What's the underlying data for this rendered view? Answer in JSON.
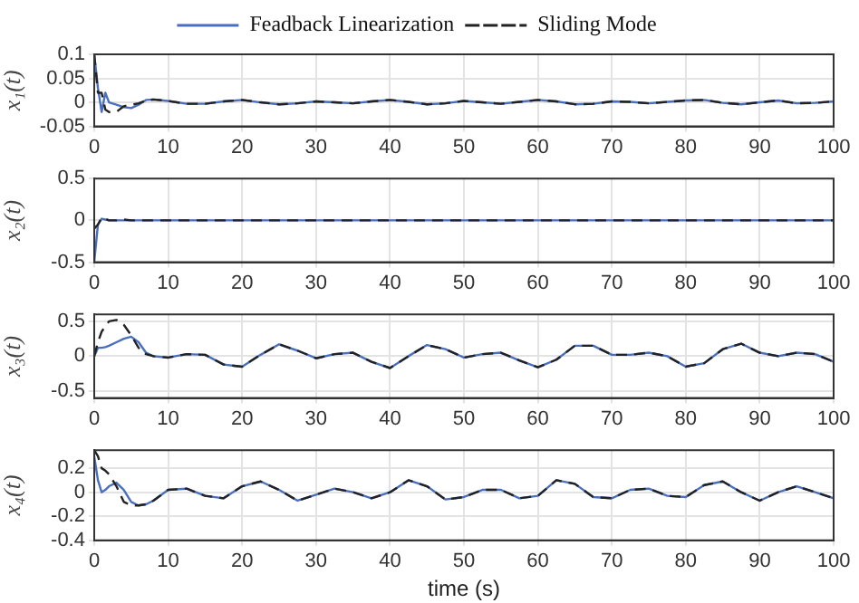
{
  "chart_data": [
    {
      "type": "line",
      "ylabel": "x₁(t)",
      "legend": "top",
      "grid": true,
      "xlim": [
        0,
        100
      ],
      "xticks": [
        0,
        10,
        20,
        30,
        40,
        50,
        60,
        70,
        80,
        90,
        100
      ],
      "ylim": [
        -0.05,
        0.1
      ],
      "yticks": [
        -0.05,
        0,
        0.05,
        0.1
      ],
      "x": [
        0,
        0.5,
        1,
        1.5,
        2,
        3,
        4,
        5,
        6,
        7,
        8,
        10,
        12.5,
        15,
        17.5,
        20,
        22.5,
        25,
        27.5,
        30,
        32.5,
        35,
        37.5,
        40,
        42.5,
        45,
        47.5,
        50,
        52.5,
        55,
        57.5,
        60,
        62.5,
        65,
        67.5,
        70,
        72.5,
        75,
        77.5,
        80,
        82.5,
        85,
        87.5,
        90,
        92.5,
        95,
        97.5,
        100
      ],
      "series": [
        {
          "name": "Feadback Linearization",
          "color": "#4a6fbf",
          "line_style": "solid",
          "values": [
            0.1,
            0.03,
            -0.02,
            0.02,
            0,
            -0.005,
            -0.01,
            -0.012,
            -0.005,
            0.005,
            0.006,
            0.003,
            -0.003,
            -0.003,
            0.002,
            0.005,
            0,
            -0.004,
            -0.002,
            0.002,
            0,
            -0.002,
            0.002,
            0.005,
            0.001,
            -0.004,
            -0.002,
            0.003,
            0,
            -0.003,
            0.001,
            0.005,
            0.002,
            -0.004,
            -0.003,
            0.002,
            0.001,
            -0.002,
            0.001,
            0.004,
            0.005,
            -0.001,
            -0.004,
            0,
            0.004,
            -0.002,
            -0.001,
            0.002
          ]
        },
        {
          "name": "Sliding Mode",
          "color": "#222222",
          "line_style": "dashed",
          "values": [
            0.1,
            0.02,
            0.02,
            -0.015,
            -0.02,
            -0.02,
            -0.008,
            -0.005,
            -0.002,
            0.004,
            0.006,
            0.003,
            -0.003,
            -0.003,
            0.002,
            0.005,
            0,
            -0.004,
            -0.002,
            0.002,
            0,
            -0.002,
            0.002,
            0.005,
            0.001,
            -0.004,
            -0.002,
            0.003,
            0,
            -0.003,
            0.001,
            0.005,
            0.002,
            -0.004,
            -0.003,
            0.002,
            0.001,
            -0.002,
            0.001,
            0.004,
            0.005,
            -0.001,
            -0.004,
            0,
            0.004,
            -0.002,
            -0.001,
            0.002
          ]
        }
      ]
    },
    {
      "type": "line",
      "ylabel": "x₂(t)",
      "grid": true,
      "xlim": [
        0,
        100
      ],
      "xticks": [
        0,
        10,
        20,
        30,
        40,
        50,
        60,
        70,
        80,
        90,
        100
      ],
      "ylim": [
        -0.5,
        0.5
      ],
      "yticks": [
        -0.5,
        0,
        0.5
      ],
      "x": [
        0,
        0.5,
        1,
        1.5,
        2,
        3,
        4,
        5,
        6,
        7,
        8,
        10,
        12.5,
        15,
        17.5,
        20,
        22.5,
        25,
        27.5,
        30,
        32.5,
        35,
        37.5,
        40,
        42.5,
        45,
        47.5,
        50,
        52.5,
        55,
        57.5,
        60,
        62.5,
        65,
        67.5,
        70,
        72.5,
        75,
        77.5,
        80,
        82.5,
        85,
        87.5,
        90,
        92.5,
        95,
        97.5,
        100
      ],
      "series": [
        {
          "color": "#4a6fbf",
          "line_style": "solid",
          "values": [
            -0.5,
            -0.05,
            0.02,
            0.01,
            0,
            0,
            0,
            0,
            0,
            0,
            0,
            0,
            0,
            0,
            0,
            0,
            0,
            0,
            0,
            0,
            0,
            0,
            0,
            0,
            0,
            0,
            0,
            0,
            0,
            0,
            0,
            0,
            0,
            0,
            0,
            0,
            0,
            0,
            0,
            0,
            0,
            0,
            0,
            0,
            0,
            0,
            0,
            0
          ]
        },
        {
          "color": "#222222",
          "line_style": "dashed",
          "values": [
            -0.1,
            -0.05,
            0.03,
            0.02,
            0,
            0,
            0.01,
            0,
            0,
            0,
            0,
            0,
            0,
            0,
            0,
            0,
            0,
            0,
            0,
            0,
            0,
            0,
            0,
            0,
            0,
            0,
            0,
            0,
            0,
            0,
            0,
            0,
            0,
            0,
            0,
            0,
            0,
            0,
            0,
            0,
            0,
            0,
            0,
            0,
            0,
            0,
            0,
            0
          ]
        }
      ]
    },
    {
      "type": "line",
      "ylabel": "x₃(t)",
      "grid": true,
      "xlim": [
        0,
        100
      ],
      "xticks": [
        0,
        10,
        20,
        30,
        40,
        50,
        60,
        70,
        80,
        90,
        100
      ],
      "ylim": [
        -0.6,
        0.6
      ],
      "yticks": [
        -0.5,
        0,
        0.5
      ],
      "x": [
        0,
        0.5,
        1,
        1.5,
        2,
        3,
        4,
        5,
        6,
        7,
        8,
        10,
        12.5,
        15,
        17.5,
        20,
        22.5,
        25,
        27.5,
        30,
        32.5,
        35,
        37.5,
        40,
        42.5,
        45,
        47.5,
        50,
        52.5,
        55,
        57.5,
        60,
        62.5,
        65,
        67.5,
        70,
        72.5,
        75,
        77.5,
        80,
        82.5,
        85,
        87.5,
        90,
        92.5,
        95,
        97.5,
        100
      ],
      "series": [
        {
          "color": "#4a6fbf",
          "line_style": "solid",
          "values": [
            0,
            0.12,
            0.12,
            0.13,
            0.15,
            0.2,
            0.25,
            0.28,
            0.2,
            0.05,
            0,
            -0.02,
            0.03,
            0.02,
            -0.12,
            -0.15,
            0.02,
            0.17,
            0.08,
            -0.03,
            0.03,
            0.05,
            -0.08,
            -0.17,
            0,
            0.16,
            0.1,
            -0.02,
            0.03,
            0.05,
            -0.06,
            -0.16,
            -0.05,
            0.15,
            0.15,
            0.02,
            0.02,
            0.05,
            0,
            -0.15,
            -0.1,
            0.1,
            0.18,
            0.05,
            0,
            0.05,
            0.03,
            -0.08
          ]
        },
        {
          "color": "#222222",
          "line_style": "dashed",
          "values": [
            0,
            0.2,
            0.35,
            0.43,
            0.5,
            0.52,
            0.45,
            0.3,
            0.12,
            0.03,
            0,
            -0.02,
            0.03,
            0.02,
            -0.12,
            -0.15,
            0.02,
            0.17,
            0.08,
            -0.03,
            0.03,
            0.05,
            -0.08,
            -0.17,
            0,
            0.16,
            0.1,
            -0.02,
            0.03,
            0.05,
            -0.06,
            -0.16,
            -0.05,
            0.15,
            0.15,
            0.02,
            0.02,
            0.05,
            0,
            -0.15,
            -0.1,
            0.1,
            0.18,
            0.05,
            0,
            0.05,
            0.03,
            -0.08
          ]
        }
      ]
    },
    {
      "type": "line",
      "ylabel": "x₄(t)",
      "xlabel": "time (s)",
      "grid": true,
      "xlim": [
        0,
        100
      ],
      "xticks": [
        0,
        10,
        20,
        30,
        40,
        50,
        60,
        70,
        80,
        90,
        100
      ],
      "ylim": [
        -0.4,
        0.35
      ],
      "yticks": [
        -0.4,
        -0.2,
        0,
        0.2
      ],
      "x": [
        0,
        0.5,
        1,
        1.5,
        2,
        3,
        4,
        5,
        6,
        7,
        8,
        10,
        12.5,
        15,
        17.5,
        20,
        22.5,
        25,
        27.5,
        30,
        32.5,
        35,
        37.5,
        40,
        42.5,
        45,
        47.5,
        50,
        52.5,
        55,
        57.5,
        60,
        62.5,
        65,
        67.5,
        70,
        72.5,
        75,
        77.5,
        80,
        82.5,
        85,
        87.5,
        90,
        92.5,
        95,
        97.5,
        100
      ],
      "series": [
        {
          "color": "#4a6fbf",
          "line_style": "solid",
          "values": [
            0.3,
            0.1,
            0,
            0.02,
            0.05,
            0.08,
            0.02,
            -0.08,
            -0.11,
            -0.1,
            -0.07,
            0.02,
            0.03,
            -0.03,
            -0.05,
            0.05,
            0.09,
            0.02,
            -0.07,
            -0.02,
            0.03,
            0,
            -0.05,
            0,
            0.1,
            0.05,
            -0.06,
            -0.04,
            0.02,
            0.02,
            -0.05,
            -0.03,
            0.1,
            0.07,
            -0.04,
            -0.05,
            0.02,
            0.03,
            -0.03,
            -0.04,
            0.06,
            0.09,
            0,
            -0.07,
            0,
            0.05,
            0,
            -0.05
          ]
        },
        {
          "color": "#222222",
          "line_style": "dashed",
          "values": [
            0.35,
            0.3,
            0.2,
            0.18,
            0.15,
            0.05,
            -0.08,
            -0.11,
            -0.11,
            -0.1,
            -0.07,
            0.02,
            0.03,
            -0.03,
            -0.05,
            0.05,
            0.09,
            0.02,
            -0.07,
            -0.02,
            0.03,
            0,
            -0.05,
            0,
            0.1,
            0.05,
            -0.06,
            -0.04,
            0.02,
            0.02,
            -0.05,
            -0.03,
            0.1,
            0.07,
            -0.04,
            -0.05,
            0.02,
            0.03,
            -0.03,
            -0.04,
            0.06,
            0.09,
            0,
            -0.07,
            0,
            0.05,
            0,
            -0.05
          ]
        }
      ]
    }
  ]
}
